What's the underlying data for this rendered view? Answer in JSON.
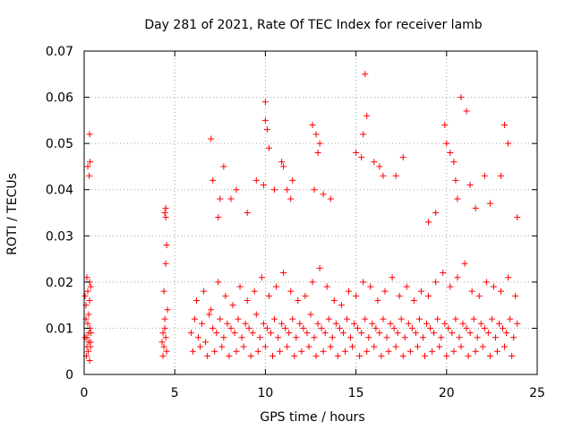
{
  "chart_data": {
    "type": "scatter",
    "title": "Day 281 of 2021, Rate Of TEC Index for receiver lamb",
    "xlabel": "GPS time / hours",
    "ylabel": "ROTI / TECUs",
    "xlim": [
      0,
      25
    ],
    "ylim": [
      0,
      0.07
    ],
    "x_ticks": [
      0,
      5,
      10,
      15,
      20,
      25
    ],
    "x_tick_labels": [
      "0",
      "5",
      "10",
      "15",
      "20",
      "25"
    ],
    "y_ticks": [
      0,
      0.01,
      0.02,
      0.03,
      0.04,
      0.05,
      0.06,
      0.07
    ],
    "y_tick_labels": [
      "0",
      "0.01",
      "0.02",
      "0.03",
      "0.04",
      "0.05",
      "0.06",
      "0.07"
    ],
    "grid": true,
    "marker": "+",
    "marker_color": "#ff0000",
    "legend": "none",
    "series": [
      {
        "x": [
          0.05,
          0.1,
          0.15,
          0.2,
          0.25,
          0.3,
          0.35,
          0.1,
          0.2,
          0.3,
          0.38,
          0.15,
          0.25,
          0.32,
          0.12,
          0.22,
          0.3,
          0.2,
          0.28,
          0.32,
          0.3,
          0.36,
          0.05,
          0.15,
          0.25,
          0.35,
          4.3,
          4.35,
          4.4,
          4.45,
          4.5,
          4.55,
          4.6,
          4.4,
          4.5,
          4.55,
          4.45,
          4.5,
          4.5,
          4.35,
          4.45,
          5.9,
          6.1,
          6.3,
          6.5,
          6.7,
          6.9,
          7.1,
          7.3,
          7.5,
          7.7,
          7.9,
          8.1,
          8.3,
          8.5,
          8.7,
          8.9,
          9.1,
          9.3,
          9.5,
          9.7,
          9.9,
          10.1,
          10.3,
          10.5,
          10.7,
          10.9,
          11.1,
          11.3,
          11.5,
          11.7,
          11.9,
          12.1,
          12.3,
          12.5,
          12.7,
          12.9,
          13.1,
          13.3,
          13.5,
          13.7,
          13.9,
          14.1,
          14.3,
          14.5,
          14.7,
          14.9,
          15.1,
          15.3,
          15.5,
          15.7,
          15.9,
          16.1,
          16.3,
          16.5,
          16.7,
          16.9,
          17.1,
          17.3,
          17.5,
          17.7,
          17.9,
          18.1,
          18.3,
          18.5,
          18.7,
          18.9,
          19.1,
          19.3,
          19.5,
          19.7,
          19.9,
          20.1,
          20.3,
          20.5,
          20.7,
          20.9,
          21.1,
          21.3,
          21.5,
          21.7,
          21.9,
          22.1,
          22.3,
          22.5,
          22.7,
          22.9,
          23.1,
          23.3,
          23.5,
          23.7,
          23.9,
          6.0,
          6.4,
          6.8,
          7.2,
          7.6,
          8.0,
          8.4,
          8.8,
          9.2,
          9.6,
          10.0,
          10.4,
          10.8,
          11.2,
          11.6,
          12.0,
          12.4,
          12.8,
          13.2,
          13.6,
          14.0,
          14.4,
          14.8,
          15.2,
          15.6,
          16.0,
          16.4,
          16.8,
          17.2,
          17.6,
          18.0,
          18.4,
          18.8,
          19.2,
          19.6,
          20.0,
          20.4,
          20.8,
          21.2,
          21.6,
          22.0,
          22.4,
          22.8,
          23.2,
          23.6,
          6.2,
          6.6,
          7.0,
          7.4,
          7.8,
          8.2,
          8.6,
          9.0,
          9.4,
          9.8,
          10.2,
          10.6,
          11.0,
          11.4,
          11.8,
          12.2,
          12.6,
          13.0,
          13.4,
          13.8,
          14.2,
          14.6,
          15.0,
          15.4,
          15.8,
          16.2,
          16.6,
          17.0,
          17.4,
          17.8,
          18.2,
          18.6,
          19.0,
          19.4,
          19.8,
          20.2,
          20.6,
          21.0,
          21.4,
          21.8,
          22.2,
          22.6,
          23.0,
          23.4,
          23.8,
          7.0,
          7.1,
          7.4,
          7.5,
          7.7,
          8.1,
          8.4,
          9.0,
          9.5,
          9.9,
          10.0,
          10.1,
          10.2,
          10.0,
          10.5,
          10.9,
          11.0,
          11.2,
          11.4,
          11.5,
          12.6,
          12.8,
          12.9,
          13.0,
          12.7,
          13.2,
          13.6,
          15.0,
          15.3,
          15.5,
          15.6,
          15.4,
          16.0,
          16.3,
          16.5,
          17.2,
          17.6,
          19.0,
          19.4,
          19.9,
          20.0,
          20.2,
          20.4,
          20.5,
          20.6,
          20.8,
          21.1,
          21.3,
          21.6,
          22.1,
          22.4,
          23.0,
          23.2,
          23.4,
          23.9
        ],
        "y": [
          0.008,
          0.012,
          0.006,
          0.018,
          0.009,
          0.02,
          0.007,
          0.015,
          0.011,
          0.016,
          0.009,
          0.021,
          0.013,
          0.01,
          0.004,
          0.005,
          0.003,
          0.045,
          0.043,
          0.046,
          0.052,
          0.019,
          0.017,
          0.008,
          0.007,
          0.006,
          0.007,
          0.009,
          0.006,
          0.012,
          0.008,
          0.005,
          0.014,
          0.018,
          0.024,
          0.028,
          0.035,
          0.034,
          0.036,
          0.004,
          0.01,
          0.009,
          0.012,
          0.008,
          0.011,
          0.007,
          0.013,
          0.01,
          0.009,
          0.012,
          0.008,
          0.011,
          0.01,
          0.009,
          0.012,
          0.008,
          0.011,
          0.01,
          0.009,
          0.013,
          0.008,
          0.011,
          0.01,
          0.009,
          0.012,
          0.008,
          0.011,
          0.01,
          0.009,
          0.012,
          0.008,
          0.011,
          0.01,
          0.009,
          0.013,
          0.008,
          0.011,
          0.01,
          0.009,
          0.012,
          0.008,
          0.011,
          0.01,
          0.009,
          0.012,
          0.008,
          0.011,
          0.01,
          0.009,
          0.012,
          0.008,
          0.011,
          0.01,
          0.009,
          0.012,
          0.008,
          0.011,
          0.01,
          0.009,
          0.012,
          0.008,
          0.011,
          0.01,
          0.009,
          0.012,
          0.008,
          0.011,
          0.01,
          0.009,
          0.012,
          0.008,
          0.011,
          0.01,
          0.009,
          0.012,
          0.008,
          0.011,
          0.01,
          0.009,
          0.012,
          0.008,
          0.011,
          0.01,
          0.009,
          0.012,
          0.008,
          0.011,
          0.01,
          0.009,
          0.012,
          0.008,
          0.011,
          0.005,
          0.006,
          0.004,
          0.005,
          0.006,
          0.004,
          0.005,
          0.006,
          0.004,
          0.005,
          0.006,
          0.004,
          0.005,
          0.006,
          0.004,
          0.005,
          0.006,
          0.004,
          0.005,
          0.006,
          0.004,
          0.005,
          0.006,
          0.004,
          0.005,
          0.006,
          0.004,
          0.005,
          0.006,
          0.004,
          0.005,
          0.006,
          0.004,
          0.005,
          0.006,
          0.004,
          0.005,
          0.006,
          0.004,
          0.005,
          0.006,
          0.004,
          0.005,
          0.006,
          0.004,
          0.016,
          0.018,
          0.014,
          0.02,
          0.017,
          0.015,
          0.019,
          0.016,
          0.018,
          0.021,
          0.017,
          0.019,
          0.022,
          0.018,
          0.016,
          0.017,
          0.02,
          0.023,
          0.019,
          0.016,
          0.015,
          0.018,
          0.017,
          0.02,
          0.019,
          0.016,
          0.018,
          0.021,
          0.017,
          0.019,
          0.016,
          0.018,
          0.017,
          0.02,
          0.022,
          0.019,
          0.021,
          0.024,
          0.018,
          0.017,
          0.02,
          0.019,
          0.018,
          0.021,
          0.017,
          0.051,
          0.042,
          0.034,
          0.038,
          0.045,
          0.038,
          0.04,
          0.035,
          0.042,
          0.041,
          0.059,
          0.053,
          0.049,
          0.055,
          0.04,
          0.046,
          0.045,
          0.04,
          0.038,
          0.042,
          0.054,
          0.052,
          0.048,
          0.05,
          0.04,
          0.039,
          0.038,
          0.048,
          0.047,
          0.065,
          0.056,
          0.052,
          0.046,
          0.045,
          0.043,
          0.043,
          0.047,
          0.033,
          0.035,
          0.054,
          0.05,
          0.048,
          0.046,
          0.042,
          0.038,
          0.06,
          0.057,
          0.041,
          0.036,
          0.043,
          0.037,
          0.043,
          0.054,
          0.05,
          0.034
        ]
      }
    ]
  }
}
